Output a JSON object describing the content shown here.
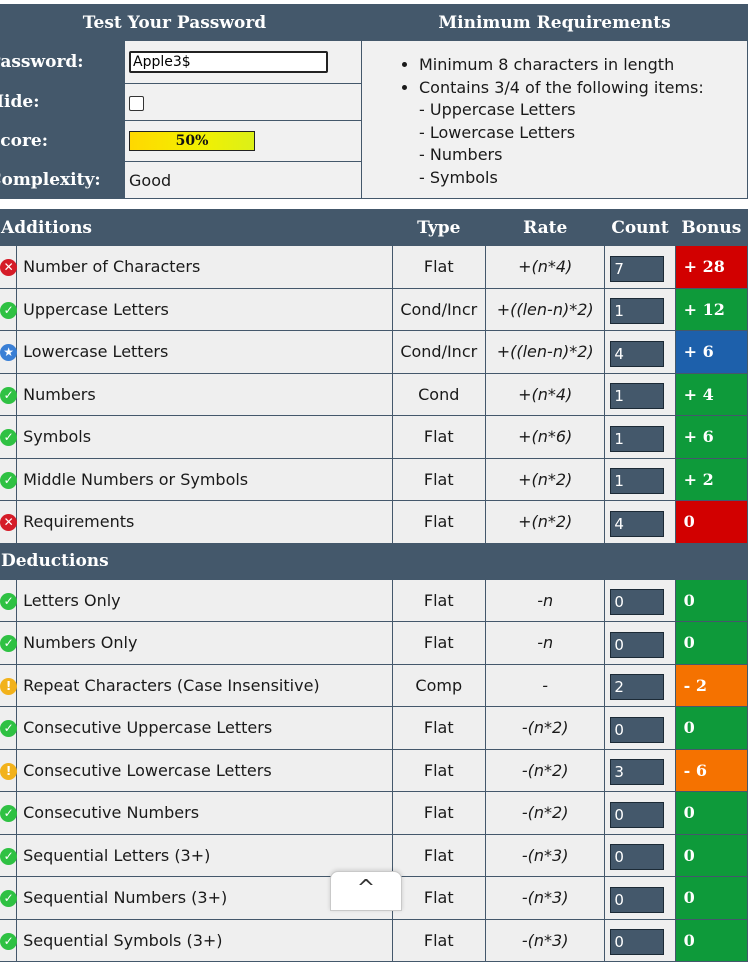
{
  "test_panel": {
    "title": "Test Your Password",
    "password_label": "Password:",
    "password_value": "Apple3$",
    "hide_label": "Hide:",
    "score_label": "Score:",
    "score_value": "50%",
    "score_fraction": 0.5,
    "complexity_label": "Complexity:",
    "complexity_value": "Good"
  },
  "requirements_panel": {
    "title": "Minimum Requirements",
    "items": [
      "Minimum 8 characters in length",
      "Contains 3/4 of the following items:"
    ],
    "sub_items": [
      "- Uppercase Letters",
      "- Lowercase Letters",
      "- Numbers",
      "- Symbols"
    ]
  },
  "table": {
    "columns": {
      "additions": "Additions",
      "type": "Type",
      "rate": "Rate",
      "count": "Count",
      "bonus": "Bonus"
    },
    "deductions_label": "Deductions",
    "additions": [
      {
        "status": "fail",
        "icon": "x-icon",
        "name": "Number of Characters",
        "type": "Flat",
        "rate": "+(n*4)",
        "count": "7",
        "bonus": "+ 28",
        "bonus_color": "#d20000"
      },
      {
        "status": "pass",
        "icon": "check-icon",
        "name": "Uppercase Letters",
        "type": "Cond/Incr",
        "rate": "+((len-n)*2)",
        "count": "1",
        "bonus": "+ 12",
        "bonus_color": "#0e9a3a"
      },
      {
        "status": "exceed",
        "icon": "star-icon",
        "name": "Lowercase Letters",
        "type": "Cond/Incr",
        "rate": "+((len-n)*2)",
        "count": "4",
        "bonus": "+ 6",
        "bonus_color": "#1d60ab"
      },
      {
        "status": "pass",
        "icon": "check-icon",
        "name": "Numbers",
        "type": "Cond",
        "rate": "+(n*4)",
        "count": "1",
        "bonus": "+ 4",
        "bonus_color": "#0e9a3a"
      },
      {
        "status": "pass",
        "icon": "check-icon",
        "name": "Symbols",
        "type": "Flat",
        "rate": "+(n*6)",
        "count": "1",
        "bonus": "+ 6",
        "bonus_color": "#0e9a3a"
      },
      {
        "status": "pass",
        "icon": "check-icon",
        "name": "Middle Numbers or Symbols",
        "type": "Flat",
        "rate": "+(n*2)",
        "count": "1",
        "bonus": "+ 2",
        "bonus_color": "#0e9a3a"
      },
      {
        "status": "fail",
        "icon": "x-icon",
        "name": "Requirements",
        "type": "Flat",
        "rate": "+(n*2)",
        "count": "4",
        "bonus": "0",
        "bonus_color": "#d20000"
      }
    ],
    "deductions": [
      {
        "status": "pass",
        "icon": "check-icon",
        "name": "Letters Only",
        "type": "Flat",
        "rate": "-n",
        "count": "0",
        "bonus": "0",
        "bonus_color": "#0e9a3a"
      },
      {
        "status": "pass",
        "icon": "check-icon",
        "name": "Numbers Only",
        "type": "Flat",
        "rate": "-n",
        "count": "0",
        "bonus": "0",
        "bonus_color": "#0e9a3a"
      },
      {
        "status": "warn",
        "icon": "warning-icon",
        "name": "Repeat Characters (Case Insensitive)",
        "type": "Comp",
        "rate": "-",
        "count": "2",
        "bonus": "- 2",
        "bonus_color": "#f57200"
      },
      {
        "status": "pass",
        "icon": "check-icon",
        "name": "Consecutive Uppercase Letters",
        "type": "Flat",
        "rate": "-(n*2)",
        "count": "0",
        "bonus": "0",
        "bonus_color": "#0e9a3a"
      },
      {
        "status": "warn",
        "icon": "warning-icon",
        "name": "Consecutive Lowercase Letters",
        "type": "Flat",
        "rate": "-(n*2)",
        "count": "3",
        "bonus": "- 6",
        "bonus_color": "#f57200"
      },
      {
        "status": "pass",
        "icon": "check-icon",
        "name": "Consecutive Numbers",
        "type": "Flat",
        "rate": "-(n*2)",
        "count": "0",
        "bonus": "0",
        "bonus_color": "#0e9a3a"
      },
      {
        "status": "pass",
        "icon": "check-icon",
        "name": "Sequential Letters (3+)",
        "type": "Flat",
        "rate": "-(n*3)",
        "count": "0",
        "bonus": "0",
        "bonus_color": "#0e9a3a"
      },
      {
        "status": "pass",
        "icon": "check-icon",
        "name": "Sequential Numbers (3+)",
        "type": "Flat",
        "rate": "-(n*3)",
        "count": "0",
        "bonus": "0",
        "bonus_color": "#0e9a3a"
      },
      {
        "status": "pass",
        "icon": "check-icon",
        "name": "Sequential Symbols (3+)",
        "type": "Flat",
        "rate": "-(n*3)",
        "count": "0",
        "bonus": "0",
        "bonus_color": "#0e9a3a"
      }
    ]
  },
  "scroll_top": {
    "icon": "chevron-up-icon",
    "glyph": "^"
  }
}
